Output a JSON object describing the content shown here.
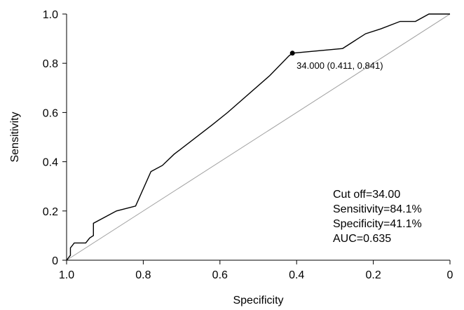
{
  "chart_data": {
    "type": "line",
    "xlabel": "Specificity",
    "ylabel": "Sensitivity",
    "xlim": [
      1.0,
      0
    ],
    "ylim": [
      0,
      1.0
    ],
    "x_ticks": [
      1.0,
      0.8,
      0.6,
      0.4,
      0.2,
      0
    ],
    "x_tick_labels": [
      "1.0",
      "0.8",
      "0.6",
      "0.4",
      "0.2",
      "0"
    ],
    "y_ticks": [
      0,
      0.2,
      0.4,
      0.6,
      0.8,
      1.0
    ],
    "y_tick_labels": [
      "0",
      "0.2",
      "0.4",
      "0.6",
      "0.8",
      "1.0"
    ],
    "grid": false,
    "colors": {
      "roc": "#000000",
      "reference": "#a0a0a0"
    },
    "series": [
      {
        "points": [
          [
            1.0,
            0.0
          ],
          [
            0.99,
            0.02
          ],
          [
            0.99,
            0.05
          ],
          [
            0.98,
            0.07
          ],
          [
            0.95,
            0.07
          ],
          [
            0.94,
            0.09
          ],
          [
            0.93,
            0.1
          ],
          [
            0.93,
            0.15
          ],
          [
            0.87,
            0.2
          ],
          [
            0.82,
            0.22
          ],
          [
            0.78,
            0.36
          ],
          [
            0.75,
            0.385
          ],
          [
            0.72,
            0.43
          ],
          [
            0.62,
            0.55
          ],
          [
            0.58,
            0.6
          ],
          [
            0.47,
            0.75
          ],
          [
            0.42,
            0.83
          ],
          [
            0.411,
            0.841
          ],
          [
            0.28,
            0.86
          ],
          [
            0.25,
            0.89
          ],
          [
            0.22,
            0.92
          ],
          [
            0.18,
            0.94
          ],
          [
            0.13,
            0.97
          ],
          [
            0.09,
            0.97
          ],
          [
            0.055,
            1.0
          ],
          [
            0.0,
            1.0
          ]
        ]
      }
    ],
    "reference_line": [
      [
        1.0,
        0.0
      ],
      [
        0.0,
        1.0
      ]
    ],
    "cutoff_point": {
      "x": 0.411,
      "y": 0.841,
      "label": "34.000 (0.411, 0.841)"
    },
    "annotations": [
      "Cut off=34.00",
      "Sensitivity=84.1%",
      "Specificity=41.1%",
      "AUC=0.635"
    ]
  }
}
